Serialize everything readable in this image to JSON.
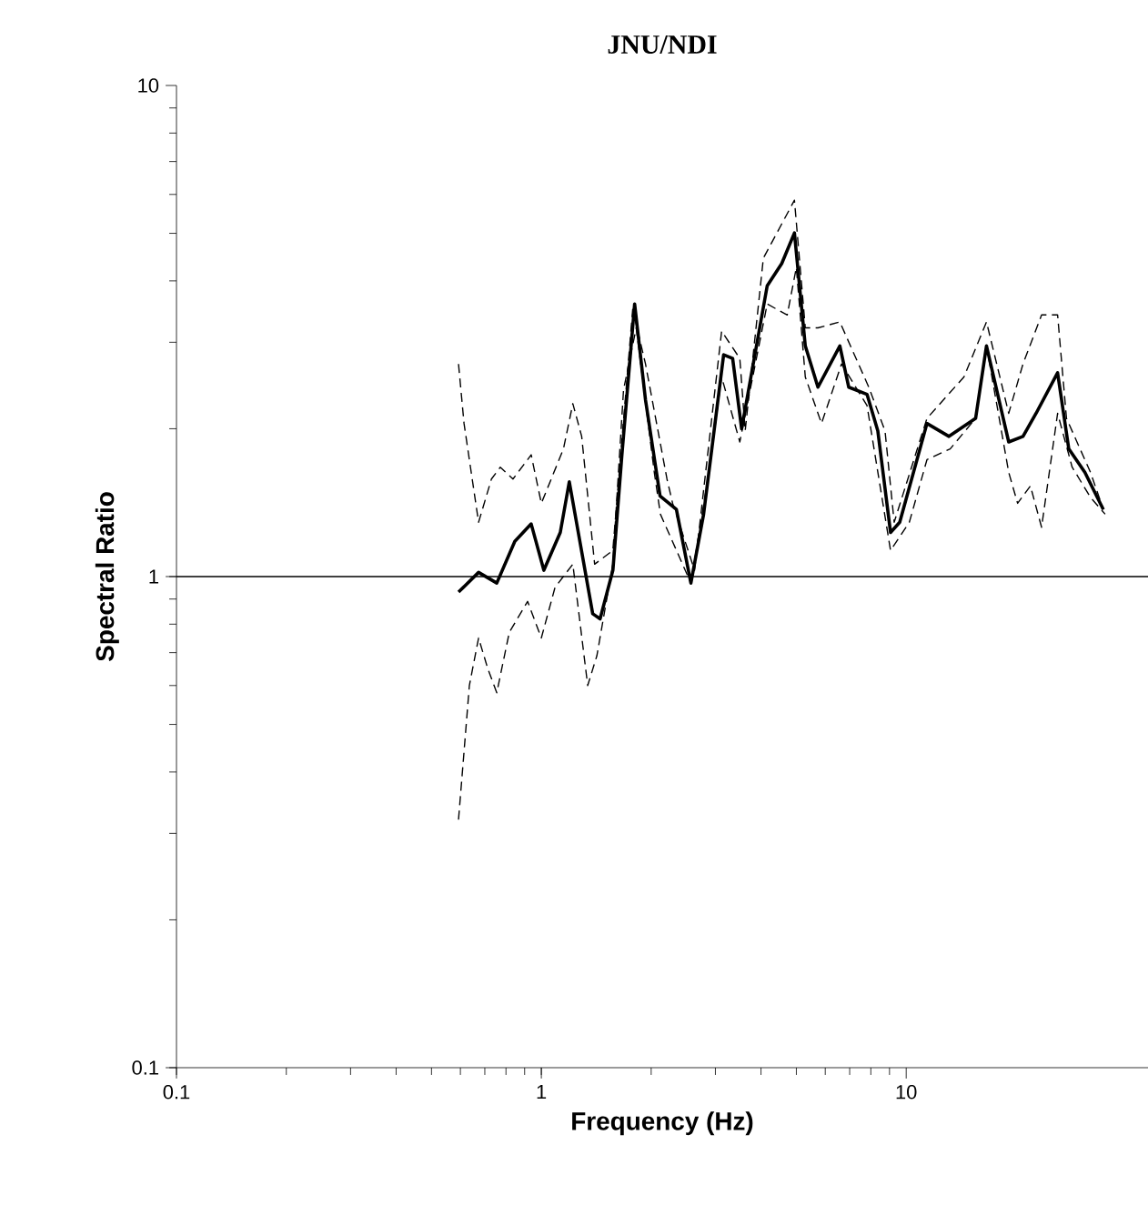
{
  "chart_data": {
    "type": "line",
    "title": "JNU/NDI",
    "xlabel": "Frequency (Hz)",
    "ylabel": "Spectral Ratio",
    "log": "xy",
    "xlim": [
      0.1,
      46
    ],
    "ylim": [
      0.1,
      10
    ],
    "xticks": [
      0.1,
      1,
      10
    ],
    "yticks": [
      0.1,
      1,
      10
    ],
    "marker": "none",
    "ref_lines": [
      {
        "axis": "y",
        "value": 1,
        "color": "#000000",
        "line_style": "solid"
      }
    ],
    "series": [
      {
        "color": "#000000",
        "line_style": "dashed",
        "x": [
          0.593,
          0.614,
          0.673,
          0.73,
          0.772,
          0.836,
          0.938,
          1.0,
          1.15,
          1.22,
          1.29,
          1.4,
          1.57,
          1.78,
          1.93,
          2.21,
          2.29,
          2.63,
          3.12,
          3.5,
          3.62,
          4.06,
          4.94,
          5.29,
          5.73,
          6.58,
          7.9,
          8.75,
          9.27,
          11.4,
          14.4,
          16.6,
          19.1,
          20.9,
          23.5,
          26.0,
          27.5,
          32.0,
          34.7
        ],
        "values": [
          2.71,
          2.05,
          1.29,
          1.58,
          1.67,
          1.58,
          1.77,
          1.41,
          1.82,
          2.25,
          1.93,
          1.06,
          1.13,
          3.5,
          2.71,
          1.58,
          1.41,
          1.03,
          3.16,
          2.78,
          1.98,
          4.45,
          5.84,
          3.21,
          3.21,
          3.3,
          2.43,
          1.98,
          1.29,
          2.1,
          2.55,
          3.3,
          2.15,
          2.71,
          3.41,
          3.41,
          2.1,
          1.63,
          1.37
        ]
      },
      {
        "color": "#000000",
        "line_style": "solid",
        "x": [
          0.593,
          0.673,
          0.755,
          0.846,
          0.938,
          1.016,
          1.127,
          1.193,
          1.383,
          1.449,
          1.571,
          1.663,
          1.802,
          1.93,
          2.115,
          2.345,
          2.57,
          2.785,
          3.16,
          3.345,
          3.54,
          4.16,
          4.56,
          4.94,
          5.29,
          5.73,
          6.58,
          6.96,
          7.81,
          8.36,
          9.06,
          9.6,
          11.4,
          13.1,
          15.5,
          16.6,
          19.1,
          20.9,
          22.7,
          26.0,
          27.9,
          30.9,
          34.7
        ],
        "values": [
          0.93,
          1.02,
          0.97,
          1.18,
          1.28,
          1.03,
          1.23,
          1.56,
          0.84,
          0.82,
          1.03,
          1.77,
          3.59,
          2.29,
          1.46,
          1.37,
          0.97,
          1.34,
          2.83,
          2.78,
          2.0,
          3.91,
          4.34,
          5.01,
          2.95,
          2.43,
          2.95,
          2.43,
          2.35,
          1.98,
          1.23,
          1.29,
          2.05,
          1.93,
          2.1,
          2.95,
          1.88,
          1.93,
          2.15,
          2.6,
          1.82,
          1.63,
          1.37
        ]
      },
      {
        "color": "#000000",
        "line_style": "dashed",
        "x": [
          0.593,
          0.614,
          0.635,
          0.673,
          0.713,
          0.755,
          0.817,
          0.917,
          1.0,
          1.09,
          1.22,
          1.34,
          1.42,
          1.57,
          1.68,
          1.82,
          2.04,
          2.12,
          2.57,
          2.88,
          3.12,
          3.5,
          4.16,
          4.72,
          5.0,
          5.29,
          5.86,
          6.65,
          7.81,
          9.06,
          10.2,
          11.4,
          13.2,
          15.5,
          16.6,
          19.1,
          20.2,
          21.9,
          23.5,
          26.0,
          28.5,
          32.0,
          35.1
        ],
        "values": [
          0.32,
          0.44,
          0.6,
          0.75,
          0.65,
          0.58,
          0.77,
          0.89,
          0.75,
          0.95,
          1.06,
          0.6,
          0.69,
          1.06,
          2.4,
          3.21,
          1.63,
          1.34,
          0.97,
          1.63,
          2.55,
          1.88,
          3.59,
          3.41,
          4.26,
          2.55,
          2.05,
          2.71,
          2.23,
          1.13,
          1.29,
          1.73,
          1.82,
          2.1,
          2.95,
          1.63,
          1.41,
          1.53,
          1.26,
          2.15,
          1.67,
          1.45,
          1.34
        ]
      }
    ]
  }
}
